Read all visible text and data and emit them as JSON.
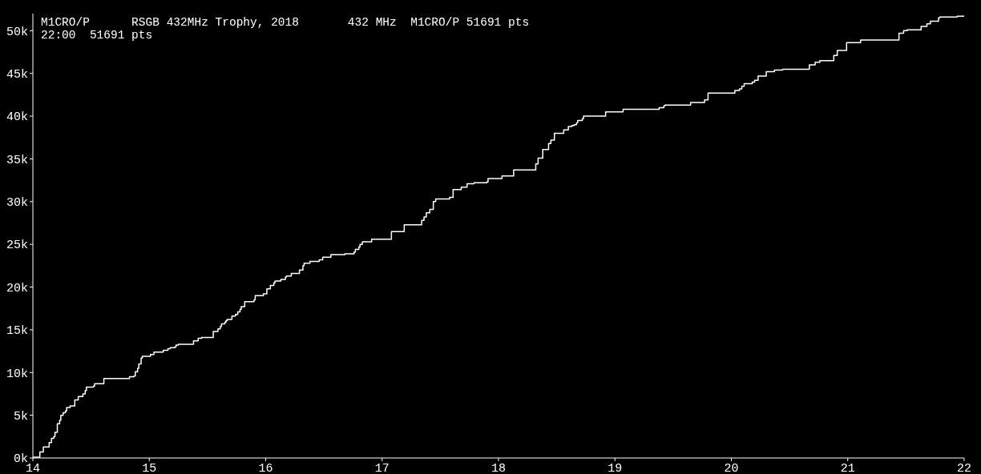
{
  "chart_data": {
    "type": "step",
    "title": "M1CRO/P      RSGB 432MHz Trophy, 2018       432 MHz  M1CRO/P 51691 pts",
    "subtitle": "22:00  51691 pts",
    "x": [
      14.0,
      14.06,
      14.09,
      14.14,
      14.16,
      14.18,
      14.19,
      14.21,
      14.23,
      14.24,
      14.26,
      14.28,
      14.29,
      14.32,
      14.36,
      14.39,
      14.43,
      14.45,
      14.46,
      14.52,
      14.53,
      14.61,
      14.83,
      14.87,
      14.88,
      14.9,
      14.91,
      14.93,
      14.94,
      15.01,
      15.04,
      15.12,
      15.16,
      15.18,
      15.22,
      15.23,
      15.25,
      15.38,
      15.42,
      15.45,
      15.55,
      15.59,
      15.61,
      15.62,
      15.65,
      15.66,
      15.67,
      15.71,
      15.74,
      15.76,
      15.78,
      15.79,
      15.82,
      15.9,
      15.91,
      15.98,
      16.01,
      16.04,
      16.07,
      16.08,
      16.13,
      16.17,
      16.18,
      16.22,
      16.29,
      16.32,
      16.33,
      16.38,
      16.46,
      16.49,
      16.56,
      16.68,
      16.76,
      16.77,
      16.8,
      16.81,
      16.83,
      16.91,
      17.08,
      17.19,
      17.34,
      17.36,
      17.38,
      17.41,
      17.44,
      17.46,
      17.58,
      17.61,
      17.68,
      17.73,
      17.79,
      17.9,
      17.91,
      18.03,
      18.13,
      18.32,
      18.34,
      18.38,
      18.43,
      18.45,
      18.48,
      18.56,
      18.6,
      18.63,
      18.65,
      18.67,
      18.68,
      18.72,
      18.73,
      18.92,
      19.07,
      19.38,
      19.42,
      19.43,
      19.65,
      19.77,
      19.8,
      20.03,
      20.07,
      20.09,
      20.11,
      20.18,
      20.2,
      20.23,
      20.3,
      20.37,
      20.44,
      20.67,
      20.72,
      20.76,
      20.88,
      20.91,
      20.99,
      21.11,
      21.44,
      21.48,
      21.51,
      21.63,
      21.68,
      21.71,
      21.78,
      21.79,
      21.94,
      22.0
    ],
    "series": [
      {
        "color": "#ffffff",
        "values": [
          100,
          700,
          1300,
          1800,
          2300,
          2500,
          3000,
          4000,
          4400,
          5000,
          5300,
          5500,
          5900,
          6100,
          6800,
          7200,
          7500,
          7900,
          8300,
          8400,
          8700,
          9300,
          9500,
          9600,
          10100,
          10500,
          11000,
          11700,
          11900,
          12100,
          12400,
          12600,
          12800,
          12900,
          13000,
          13200,
          13300,
          13700,
          14000,
          14100,
          14800,
          15100,
          15400,
          15700,
          15900,
          16100,
          16200,
          16600,
          16800,
          17100,
          17400,
          17700,
          18300,
          18500,
          19000,
          19200,
          19800,
          20200,
          20500,
          20700,
          20900,
          21200,
          21300,
          21600,
          22000,
          22500,
          22800,
          23000,
          23200,
          23500,
          23800,
          23900,
          24100,
          24400,
          24700,
          25000,
          25300,
          25600,
          26500,
          27300,
          27800,
          28200,
          28700,
          29100,
          30000,
          30300,
          30500,
          31400,
          31700,
          32100,
          32200,
          32300,
          32700,
          33000,
          33700,
          34400,
          35100,
          36100,
          36800,
          37200,
          38000,
          38400,
          38800,
          38900,
          39000,
          39200,
          39500,
          39700,
          40000,
          40500,
          40800,
          41000,
          41200,
          41300,
          41600,
          41900,
          42700,
          43000,
          43200,
          43500,
          43800,
          44000,
          44200,
          44700,
          45200,
          45400,
          45500,
          46000,
          46300,
          46500,
          47100,
          47700,
          48600,
          48900,
          49700,
          50000,
          50100,
          50500,
          50800,
          51100,
          51500,
          51600,
          51691,
          51691
        ]
      }
    ],
    "xlim": [
      14,
      22
    ],
    "xticks": [
      14,
      15,
      16,
      17,
      18,
      19,
      20,
      21,
      22
    ],
    "ylim": [
      0,
      52000
    ],
    "yticks": [
      {
        "value": 0,
        "label": "0k"
      },
      {
        "value": 5000,
        "label": "5k"
      },
      {
        "value": 10000,
        "label": "10k"
      },
      {
        "value": 15000,
        "label": "15k"
      },
      {
        "value": 20000,
        "label": "20k"
      },
      {
        "value": 25000,
        "label": "25k"
      },
      {
        "value": 30000,
        "label": "30k"
      },
      {
        "value": 35000,
        "label": "35k"
      },
      {
        "value": 40000,
        "label": "40k"
      },
      {
        "value": 45000,
        "label": "45k"
      },
      {
        "value": 50000,
        "label": "50k"
      }
    ],
    "grid": false,
    "marker": "none",
    "line_style": "solid"
  }
}
